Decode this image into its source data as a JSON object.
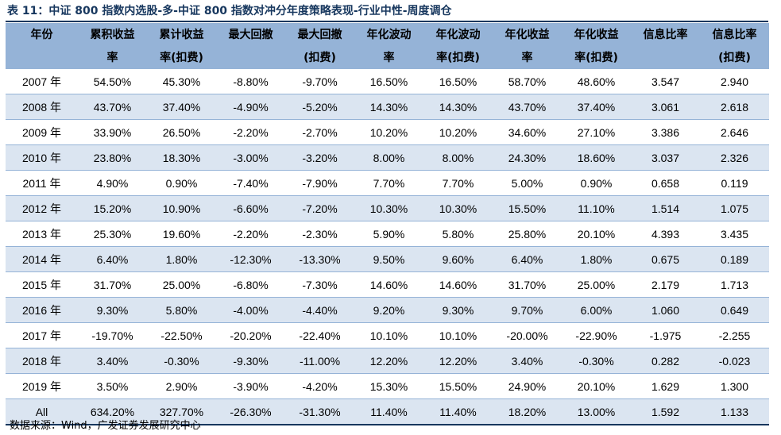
{
  "title": "表 11：中证 800 指数内选股-多-中证 800 指数对冲分年度策略表现-行业中性-周度调仓",
  "headers": [
    {
      "line1": "年份",
      "line2": ""
    },
    {
      "line1": "累积收益",
      "line2": "率"
    },
    {
      "line1": "累计收益",
      "line2": "率(扣费)"
    },
    {
      "line1": "最大回撤",
      "line2": ""
    },
    {
      "line1": "最大回撤",
      "line2": "(扣费)"
    },
    {
      "line1": "年化波动",
      "line2": "率"
    },
    {
      "line1": "年化波动",
      "line2": "率(扣费)"
    },
    {
      "line1": "年化收益",
      "line2": "率"
    },
    {
      "line1": "年化收益",
      "line2": "率(扣费)"
    },
    {
      "line1": "信息比率",
      "line2": ""
    },
    {
      "line1": "信息比率",
      "line2": "(扣费)"
    }
  ],
  "rows": [
    [
      "2007 年",
      "54.50%",
      "45.30%",
      "-8.80%",
      "-9.70%",
      "16.50%",
      "16.50%",
      "58.70%",
      "48.60%",
      "3.547",
      "2.940"
    ],
    [
      "2008 年",
      "43.70%",
      "37.40%",
      "-4.90%",
      "-5.20%",
      "14.30%",
      "14.30%",
      "43.70%",
      "37.40%",
      "3.061",
      "2.618"
    ],
    [
      "2009 年",
      "33.90%",
      "26.50%",
      "-2.20%",
      "-2.70%",
      "10.20%",
      "10.20%",
      "34.60%",
      "27.10%",
      "3.386",
      "2.646"
    ],
    [
      "2010 年",
      "23.80%",
      "18.30%",
      "-3.00%",
      "-3.20%",
      "8.00%",
      "8.00%",
      "24.30%",
      "18.60%",
      "3.037",
      "2.326"
    ],
    [
      "2011 年",
      "4.90%",
      "0.90%",
      "-7.40%",
      "-7.90%",
      "7.70%",
      "7.70%",
      "5.00%",
      "0.90%",
      "0.658",
      "0.119"
    ],
    [
      "2012 年",
      "15.20%",
      "10.90%",
      "-6.60%",
      "-7.20%",
      "10.30%",
      "10.30%",
      "15.50%",
      "11.10%",
      "1.514",
      "1.075"
    ],
    [
      "2013 年",
      "25.30%",
      "19.60%",
      "-2.20%",
      "-2.30%",
      "5.90%",
      "5.80%",
      "25.80%",
      "20.10%",
      "4.393",
      "3.435"
    ],
    [
      "2014 年",
      "6.40%",
      "1.80%",
      "-12.30%",
      "-13.30%",
      "9.50%",
      "9.60%",
      "6.40%",
      "1.80%",
      "0.675",
      "0.189"
    ],
    [
      "2015 年",
      "31.70%",
      "25.00%",
      "-6.80%",
      "-7.30%",
      "14.60%",
      "14.60%",
      "31.70%",
      "25.00%",
      "2.179",
      "1.713"
    ],
    [
      "2016 年",
      "9.30%",
      "5.80%",
      "-4.00%",
      "-4.40%",
      "9.20%",
      "9.30%",
      "9.70%",
      "6.00%",
      "1.060",
      "0.649"
    ],
    [
      "2017 年",
      "-19.70%",
      "-22.50%",
      "-20.20%",
      "-22.40%",
      "10.10%",
      "10.10%",
      "-20.00%",
      "-22.90%",
      "-1.975",
      "-2.255"
    ],
    [
      "2018 年",
      "3.40%",
      "-0.30%",
      "-9.30%",
      "-11.00%",
      "12.20%",
      "12.20%",
      "3.40%",
      "-0.30%",
      "0.282",
      "-0.023"
    ],
    [
      "2019 年",
      "3.50%",
      "2.90%",
      "-3.90%",
      "-4.20%",
      "15.30%",
      "15.50%",
      "24.90%",
      "20.10%",
      "1.629",
      "1.300"
    ],
    [
      "All",
      "634.20%",
      "327.70%",
      "-26.30%",
      "-31.30%",
      "11.40%",
      "11.40%",
      "18.20%",
      "13.00%",
      "1.592",
      "1.133"
    ]
  ],
  "source": "数据来源：Wind，广发证券发展研究中心",
  "colors": {
    "header_bg": "#95b3d7",
    "stripe_bg": "#dbe5f1",
    "title_color": "#17375e"
  }
}
